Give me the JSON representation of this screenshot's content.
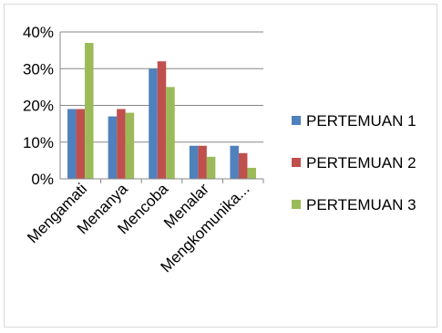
{
  "chart_data": {
    "type": "bar",
    "categories": [
      "Mengamati",
      "Menanya",
      "Mencoba",
      "Menalar",
      "Mengkomunika..."
    ],
    "series": [
      {
        "name": "PERTEMUAN 1",
        "color": "#4f81bd",
        "values": [
          19,
          17,
          30,
          9,
          9
        ]
      },
      {
        "name": "PERTEMUAN 2",
        "color": "#c0504d",
        "values": [
          19,
          19,
          32,
          9,
          7
        ]
      },
      {
        "name": "PERTEMUAN 3",
        "color": "#9bbb59",
        "values": [
          37,
          18,
          25,
          6,
          3
        ]
      }
    ],
    "yticks": [
      "0%",
      "10%",
      "20%",
      "30%",
      "40%"
    ],
    "ylim": [
      0,
      40
    ],
    "grid": true,
    "legend": "right",
    "title": "",
    "xlabel": "",
    "ylabel": ""
  }
}
